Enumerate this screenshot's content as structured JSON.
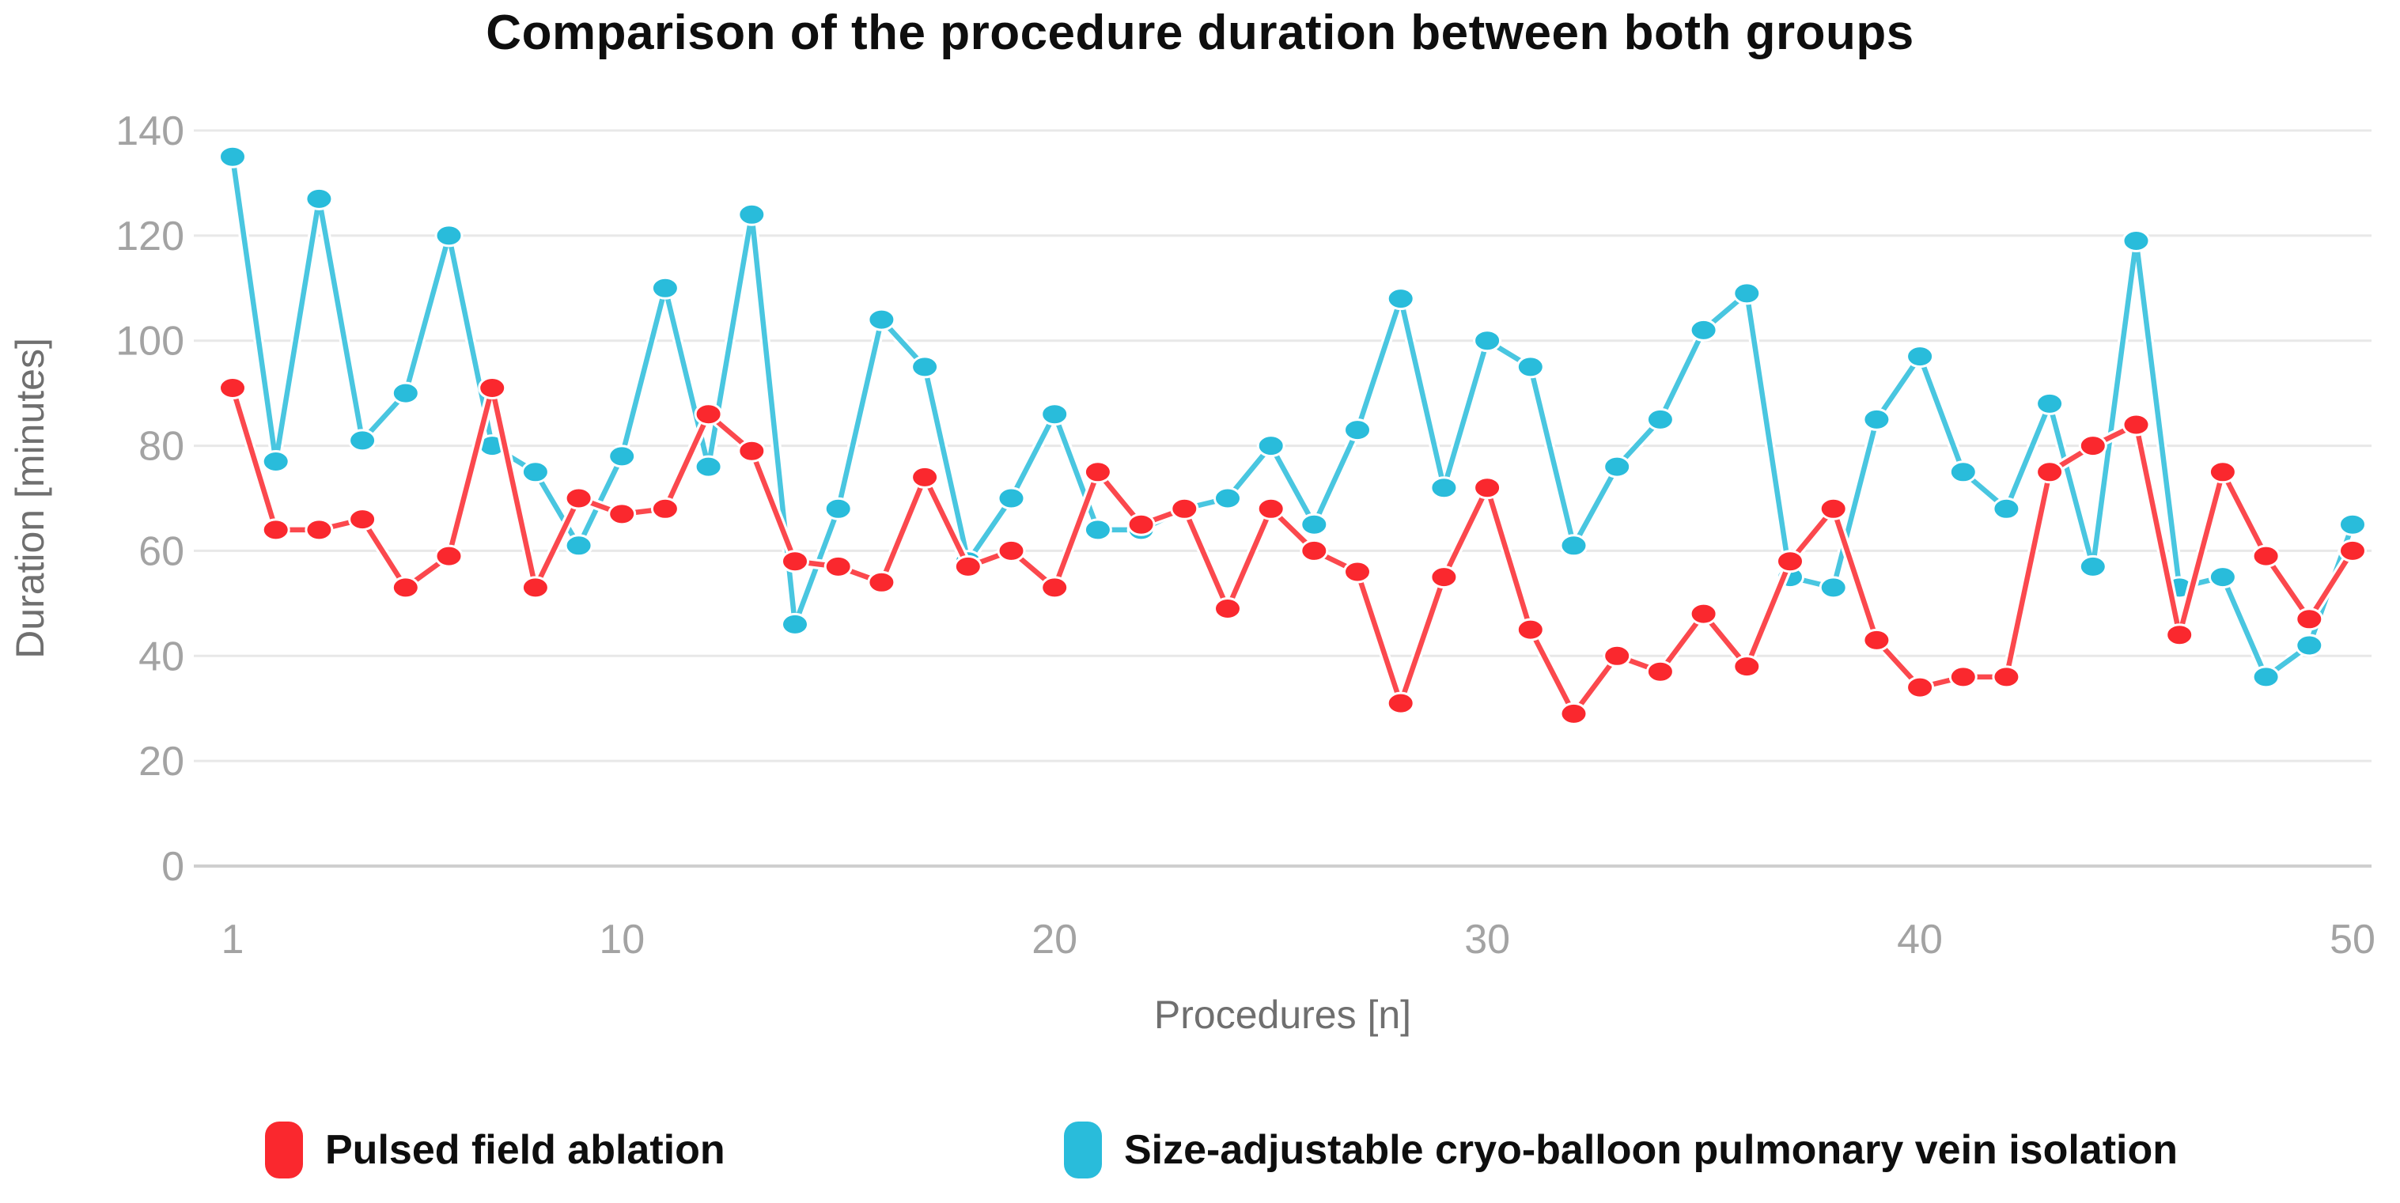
{
  "page": {
    "background": "#ffffff"
  },
  "chart_data": {
    "type": "line",
    "title": "Comparison of the procedure duration between both groups",
    "xlabel": "Procedures [n]",
    "ylabel": "Duration [minutes]",
    "x": [
      1,
      2,
      3,
      4,
      5,
      6,
      7,
      8,
      9,
      10,
      11,
      12,
      13,
      14,
      15,
      16,
      17,
      18,
      19,
      20,
      21,
      22,
      23,
      24,
      25,
      26,
      27,
      28,
      29,
      30,
      31,
      32,
      33,
      34,
      35,
      36,
      37,
      38,
      39,
      40,
      41,
      42,
      43,
      44,
      45,
      46,
      47,
      48,
      49,
      50
    ],
    "x_ticks": [
      1,
      10,
      20,
      30,
      40,
      50
    ],
    "y_ticks": [
      0,
      20,
      40,
      60,
      80,
      100,
      120,
      140
    ],
    "ylim": [
      0,
      140
    ],
    "grid": true,
    "legend_position": "bottom",
    "series": [
      {
        "name": "Pulsed field ablation",
        "color": "#fa282e",
        "values": [
          91,
          64,
          64,
          66,
          53,
          59,
          91,
          53,
          70,
          67,
          68,
          86,
          79,
          58,
          57,
          54,
          74,
          57,
          60,
          53,
          75,
          65,
          68,
          49,
          68,
          60,
          56,
          31,
          55,
          72,
          45,
          29,
          40,
          37,
          48,
          38,
          58,
          68,
          43,
          34,
          36,
          36,
          75,
          80,
          84,
          44,
          75,
          59,
          47,
          60
        ]
      },
      {
        "name": "Size-adjustable cryo-balloon pulmonary vein isolation",
        "color": "#29bcdb",
        "values": [
          135,
          77,
          127,
          81,
          90,
          120,
          80,
          75,
          61,
          78,
          110,
          76,
          124,
          46,
          68,
          104,
          95,
          58,
          70,
          86,
          64,
          64,
          68,
          70,
          80,
          65,
          83,
          108,
          72,
          100,
          95,
          61,
          76,
          85,
          102,
          109,
          55,
          53,
          85,
          97,
          75,
          68,
          88,
          57,
          119,
          53,
          55,
          36,
          42,
          65
        ]
      }
    ],
    "style_colors": {
      "gridline": "#e8e8e8",
      "axis_line": "#cfcfcf",
      "tick_label": "#a3a3a3",
      "axis_title": "#6f6f6f",
      "title_text": "#0e0e0e",
      "legend_text": "#0e0e0e"
    }
  }
}
